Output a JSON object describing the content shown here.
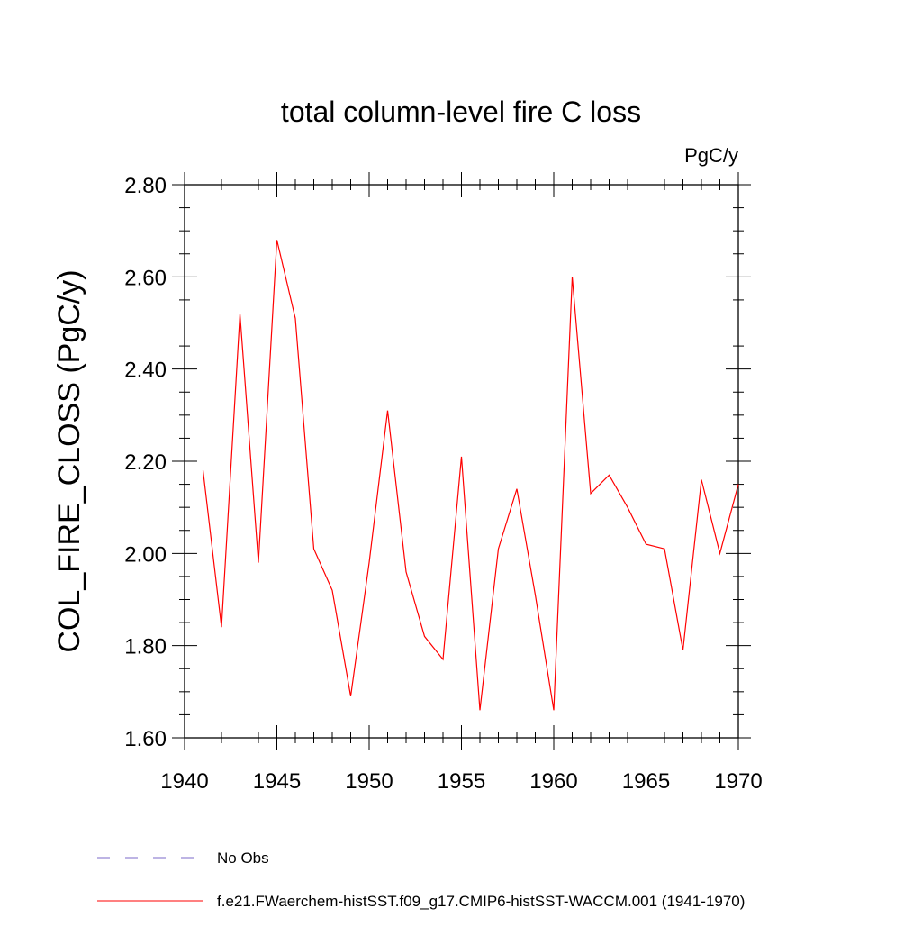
{
  "chart_data": {
    "type": "line",
    "title": "total column-level fire C loss",
    "units_label": "PgC/y",
    "ylabel": "COL_FIRE_CLOSS  (PgC/y)",
    "xlabel": "",
    "xlim": [
      1940,
      1970
    ],
    "ylim": [
      1.6,
      2.8
    ],
    "x_ticks": [
      1940,
      1945,
      1950,
      1955,
      1960,
      1965,
      1970
    ],
    "x_tick_labels": [
      "1940",
      "1945",
      "1950",
      "1955",
      "1960",
      "1965",
      "1970"
    ],
    "y_ticks": [
      1.6,
      1.8,
      2.0,
      2.2,
      2.4,
      2.6,
      2.8
    ],
    "y_tick_labels": [
      "1.60",
      "1.80",
      "2.00",
      "2.20",
      "2.40",
      "2.60",
      "2.80"
    ],
    "grid": false,
    "legend_position": "bottom",
    "series": [
      {
        "name": "f.e21.FWaerchem-histSST.f09_g17.CMIP6-histSST-WACCM.001 (1941-1970)",
        "color": "#ff0000",
        "style": "solid",
        "x": [
          1941,
          1942,
          1943,
          1944,
          1945,
          1946,
          1947,
          1948,
          1949,
          1950,
          1951,
          1952,
          1953,
          1954,
          1955,
          1956,
          1957,
          1958,
          1959,
          1960,
          1961,
          1962,
          1963,
          1964,
          1965,
          1966,
          1967,
          1968,
          1969,
          1970
        ],
        "y": [
          2.18,
          1.84,
          2.52,
          1.98,
          2.68,
          2.51,
          2.01,
          1.92,
          1.69,
          1.98,
          2.31,
          1.96,
          1.82,
          1.77,
          2.21,
          1.66,
          2.01,
          2.14,
          1.91,
          1.66,
          2.6,
          2.13,
          2.17,
          2.1,
          2.02,
          2.01,
          1.79,
          2.16,
          2.0,
          2.15
        ]
      }
    ],
    "legend": [
      {
        "label": "No Obs",
        "color": "#7b68c8",
        "style": "dashed"
      },
      {
        "label": "f.e21.FWaerchem-histSST.f09_g17.CMIP6-histSST-WACCM.001 (1941-1970)",
        "color": "#ff0000",
        "style": "solid"
      }
    ]
  }
}
